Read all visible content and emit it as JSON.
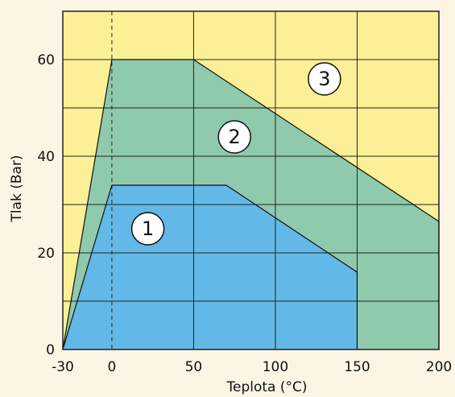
{
  "chart_data": {
    "type": "area",
    "xlabel": "Teplota (°C)",
    "ylabel": "Tlak (Bar)",
    "xlim": [
      -30,
      200
    ],
    "ylim": [
      0,
      70
    ],
    "x_ticks": [
      "-30",
      "0",
      "50",
      "100",
      "150",
      "200"
    ],
    "y_ticks": [
      "0",
      "20",
      "40",
      "60"
    ],
    "grid": true,
    "reference_line_x": 0,
    "regions": [
      {
        "name": "3",
        "color": "#fbf095",
        "points": [
          [
            -30,
            0
          ],
          [
            -30,
            70
          ],
          [
            200,
            70
          ],
          [
            200,
            0
          ]
        ]
      },
      {
        "name": "2",
        "color": "#8fcaad",
        "points": [
          [
            -30,
            0
          ],
          [
            0,
            60
          ],
          [
            50,
            60
          ],
          [
            200,
            26.5
          ],
          [
            200,
            0
          ]
        ]
      },
      {
        "name": "1",
        "color": "#62b8e6",
        "points": [
          [
            -30,
            0
          ],
          [
            0,
            34
          ],
          [
            70,
            34
          ],
          [
            150,
            16
          ],
          [
            150,
            0
          ]
        ]
      }
    ],
    "zone_labels": [
      {
        "text": "1",
        "x": 22,
        "y": 25
      },
      {
        "text": "2",
        "x": 75,
        "y": 44
      },
      {
        "text": "3",
        "x": 130,
        "y": 56
      }
    ],
    "colors": {
      "background": "#fdf5e4",
      "grid": "#222222",
      "line": "#111111"
    }
  }
}
